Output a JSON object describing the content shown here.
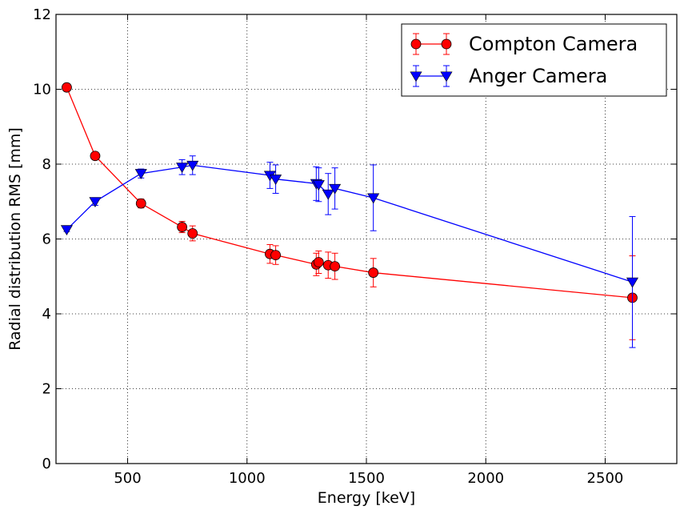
{
  "chart_data": {
    "type": "line",
    "xlabel": "Energy [keV]",
    "ylabel": "Radial distribution RMS [mm]",
    "xlim": [
      200,
      2800
    ],
    "ylim": [
      0,
      12
    ],
    "xticks": [
      500,
      1000,
      1500,
      2000,
      2500
    ],
    "yticks": [
      0,
      2,
      4,
      6,
      8,
      10,
      12
    ],
    "grid": true,
    "legend_position": "top-right",
    "series": [
      {
        "name": "Compton Camera",
        "color": "#ff0000",
        "marker": "circle",
        "points": [
          {
            "x": 245,
            "y": 10.05,
            "err": 0.0
          },
          {
            "x": 364,
            "y": 8.22,
            "err": 0.0
          },
          {
            "x": 556,
            "y": 6.95,
            "err": 0.12
          },
          {
            "x": 728,
            "y": 6.32,
            "err": 0.15
          },
          {
            "x": 772,
            "y": 6.15,
            "err": 0.2
          },
          {
            "x": 1096,
            "y": 5.6,
            "err": 0.25
          },
          {
            "x": 1120,
            "y": 5.57,
            "err": 0.25
          },
          {
            "x": 1290,
            "y": 5.32,
            "err": 0.3
          },
          {
            "x": 1300,
            "y": 5.38,
            "err": 0.3
          },
          {
            "x": 1340,
            "y": 5.3,
            "err": 0.35
          },
          {
            "x": 1368,
            "y": 5.27,
            "err": 0.35
          },
          {
            "x": 1529,
            "y": 5.1,
            "err": 0.38
          },
          {
            "x": 2614,
            "y": 4.43,
            "err": 1.12
          }
        ]
      },
      {
        "name": "Anger Camera",
        "color": "#0000ff",
        "marker": "triangle-down",
        "points": [
          {
            "x": 245,
            "y": 6.25,
            "err": 0.05
          },
          {
            "x": 364,
            "y": 7.0,
            "err": 0.1
          },
          {
            "x": 556,
            "y": 7.75,
            "err": 0.12
          },
          {
            "x": 728,
            "y": 7.92,
            "err": 0.2
          },
          {
            "x": 772,
            "y": 7.97,
            "err": 0.25
          },
          {
            "x": 1096,
            "y": 7.7,
            "err": 0.35
          },
          {
            "x": 1120,
            "y": 7.6,
            "err": 0.38
          },
          {
            "x": 1290,
            "y": 7.48,
            "err": 0.45
          },
          {
            "x": 1300,
            "y": 7.45,
            "err": 0.45
          },
          {
            "x": 1340,
            "y": 7.2,
            "err": 0.55
          },
          {
            "x": 1368,
            "y": 7.35,
            "err": 0.55
          },
          {
            "x": 1529,
            "y": 7.1,
            "err": 0.88
          },
          {
            "x": 2614,
            "y": 4.85,
            "err": 1.75
          }
        ]
      }
    ]
  }
}
